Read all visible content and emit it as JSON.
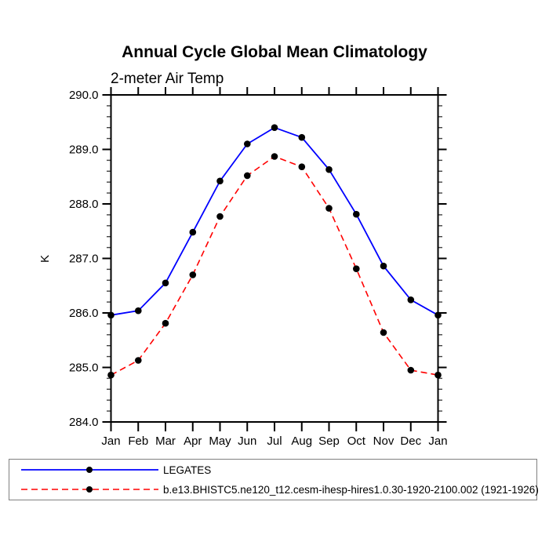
{
  "page": {
    "background": "#ffffff"
  },
  "chart_data": {
    "type": "line",
    "title": "Annual Cycle Global Mean Climatology",
    "subtitle": "2-meter Air Temp",
    "xlabel": "",
    "ylabel": "K",
    "categories": [
      "Jan",
      "Feb",
      "Mar",
      "Apr",
      "May",
      "Jun",
      "Jul",
      "Aug",
      "Sep",
      "Oct",
      "Nov",
      "Dec",
      "Jan"
    ],
    "series": [
      {
        "name": "LEGATES",
        "color": "#0000ff",
        "style": "solid",
        "marker": "circle",
        "marker_color": "#000000",
        "values": [
          285.96,
          286.04,
          286.55,
          287.48,
          288.42,
          289.1,
          289.4,
          289.22,
          288.63,
          287.81,
          286.86,
          286.24,
          285.96
        ]
      },
      {
        "name": "b.e13.BHISTC5.ne120_t12.cesm-ihesp-hires1.0.30-1920-2100.002 (1921-1926)",
        "color": "#ff0000",
        "style": "dashed",
        "marker": "circle",
        "marker_color": "#000000",
        "values": [
          284.86,
          285.13,
          285.81,
          286.7,
          287.77,
          288.52,
          288.87,
          288.68,
          287.92,
          286.81,
          285.64,
          284.95,
          284.86
        ]
      }
    ],
    "ylim": [
      284.0,
      290.0
    ],
    "ytick_major_interval": 1.0,
    "ytick_minor_interval": 0.2,
    "ytick_labels": [
      "284.0",
      "285.0",
      "286.0",
      "287.0",
      "288.0",
      "289.0",
      "290.0"
    ],
    "grid": false,
    "legend_position": "bottom-box"
  }
}
